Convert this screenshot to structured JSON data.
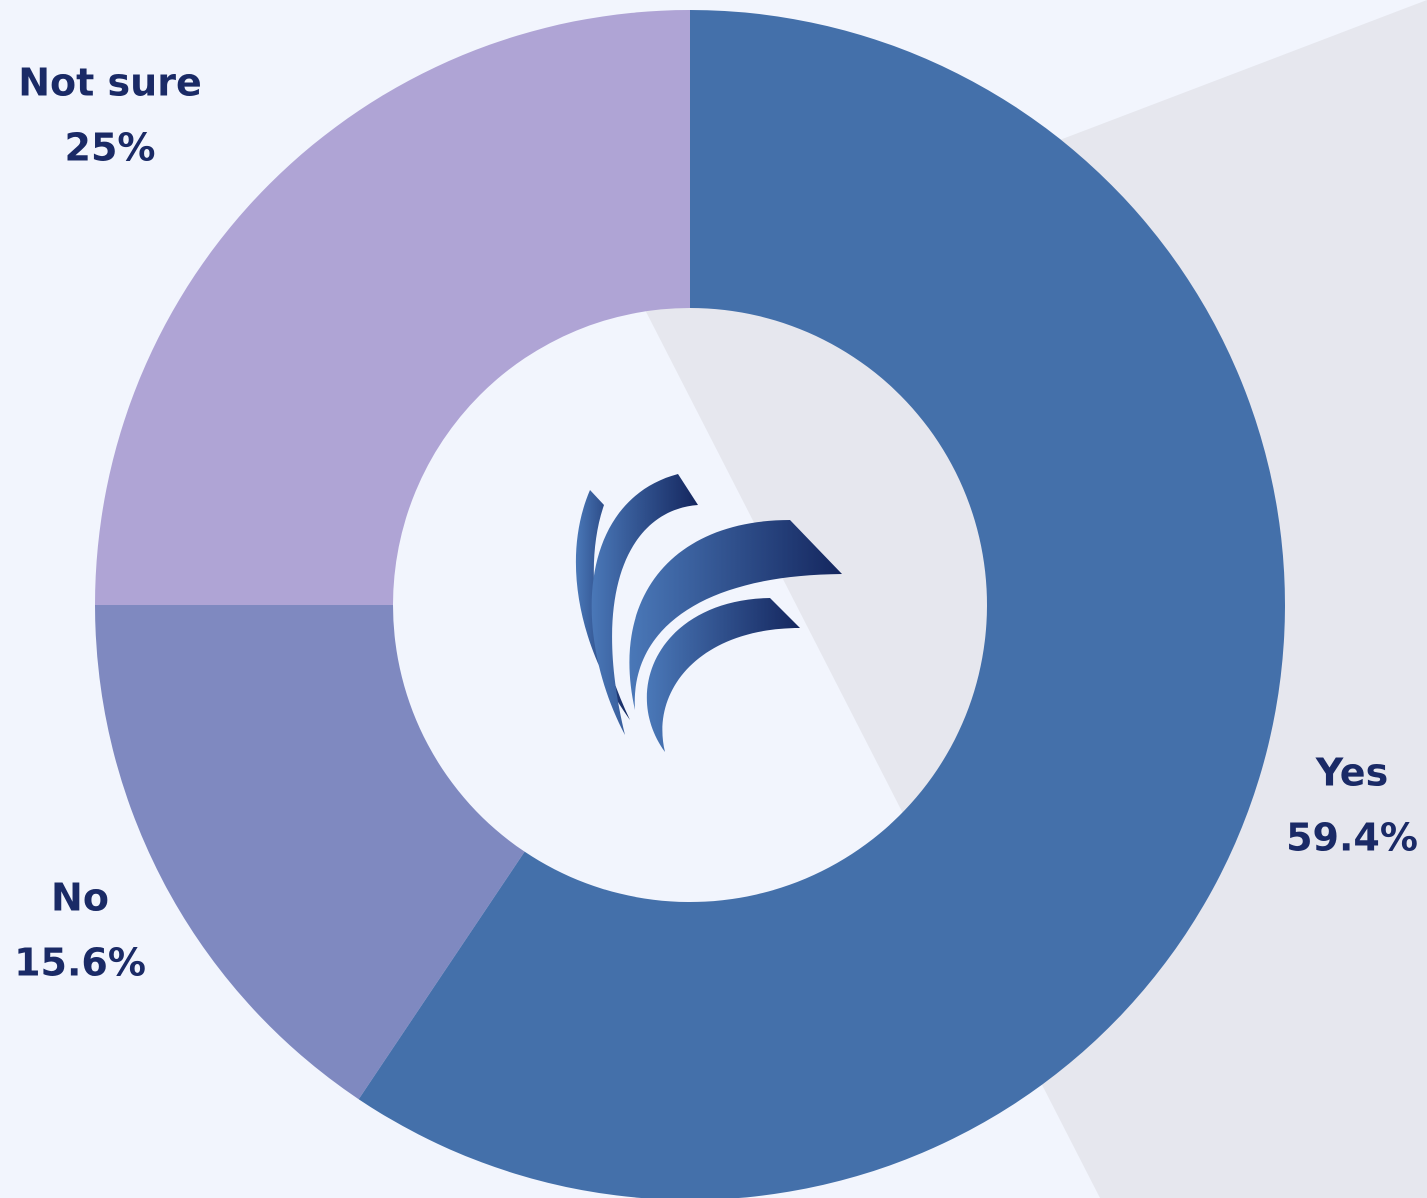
{
  "chart_data": {
    "type": "donut",
    "categories": [
      "Yes",
      "No",
      "Not sure"
    ],
    "values": [
      59.4,
      15.6,
      25
    ],
    "value_labels": [
      "59.4%",
      "15.6%",
      "25%"
    ],
    "colors": [
      "#4470aa",
      "#7f89c0",
      "#afa4d5"
    ]
  }
}
